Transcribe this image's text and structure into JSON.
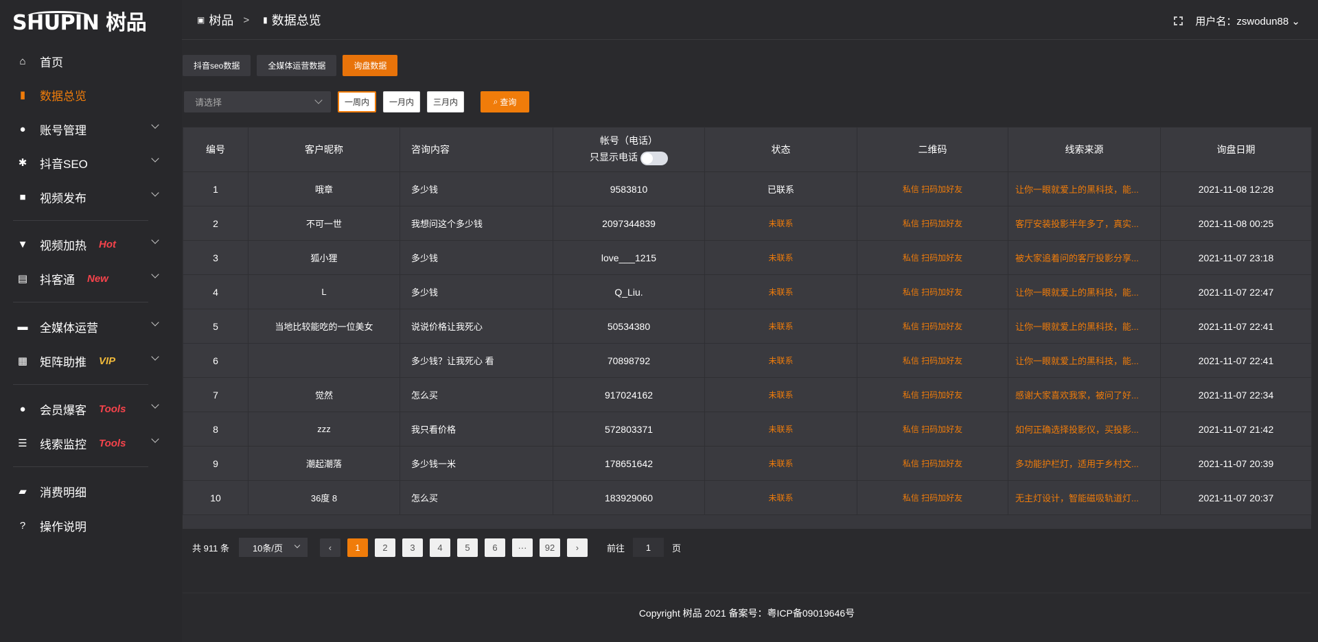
{
  "logo": "SHUPIN 树品",
  "sidebar": {
    "items": [
      {
        "label": "首页",
        "icon": "home-icon",
        "glyph": "⌂"
      },
      {
        "label": "数据总览",
        "icon": "bar-chart-icon",
        "glyph": "▮",
        "active": true
      },
      {
        "label": "账号管理",
        "icon": "user-icon",
        "glyph": "●",
        "chevron": true
      },
      {
        "label": "抖音SEO",
        "icon": "gear-icon",
        "glyph": "✱",
        "chevron": true
      },
      {
        "label": "视频发布",
        "icon": "video-icon",
        "glyph": "■",
        "chevron": true
      },
      {
        "label": "视频加热",
        "icon": "flag-icon",
        "glyph": "▼",
        "chevron": true,
        "badge": "Hot",
        "badge_color": "#f5434b"
      },
      {
        "label": "抖客通",
        "icon": "chat-icon",
        "glyph": "▤",
        "chevron": true,
        "badge": "New",
        "badge_color": "#f5434b"
      },
      {
        "label": "全媒体运营",
        "icon": "monitor-icon",
        "glyph": "▬",
        "chevron": true
      },
      {
        "label": "矩阵助推",
        "icon": "grid-icon",
        "glyph": "▦",
        "chevron": true,
        "badge": "VIP",
        "badge_color": "#f0b93a"
      },
      {
        "label": "会员爆客",
        "icon": "member-icon",
        "glyph": "●",
        "chevron": true,
        "badge": "Tools",
        "badge_color": "#f5434b"
      },
      {
        "label": "线索监控",
        "icon": "sliders-icon",
        "glyph": "☰",
        "chevron": true,
        "badge": "Tools",
        "badge_color": "#f5434b"
      },
      {
        "label": "消费明细",
        "icon": "wallet-icon",
        "glyph": "▰"
      },
      {
        "label": "操作说明",
        "icon": "help-icon",
        "glyph": "?"
      }
    ]
  },
  "header": {
    "breadcrumb": [
      "树品",
      "数据总览"
    ],
    "separator": ">",
    "username": "用户名：zswodun88"
  },
  "tabs": [
    {
      "label": "抖音seo数据"
    },
    {
      "label": "全媒体运营数据"
    },
    {
      "label": "询盘数据",
      "active": true
    }
  ],
  "filters": {
    "select_placeholder": "请选择",
    "periods": [
      "一周内",
      "一月内",
      "三月内"
    ],
    "selected_period": "一周内",
    "query": "查询"
  },
  "table": {
    "columns": [
      "编号",
      "客户昵称",
      "咨询内容",
      "帐号（电话）",
      "状态",
      "二维码",
      "线索来源",
      "询盘日期"
    ],
    "phone_toggle_label": "只显示电话",
    "phone_toggle_on": false,
    "qr_text": "私信 扫码加好友",
    "rows": [
      {
        "id": "1",
        "name": "哦章",
        "content": "多少钱",
        "account": "9583810",
        "status": "已联系",
        "source": "让你一眼就爱上的黑科技，能...",
        "date": "2021-11-08 12:28"
      },
      {
        "id": "2",
        "name": "不可一世",
        "content": "我想问这个多少钱",
        "account": "2097344839",
        "status": "未联系",
        "source": "客厅安装投影半年多了，真实...",
        "date": "2021-11-08 00:25"
      },
      {
        "id": "3",
        "name": "狐小狸",
        "content": "多少钱",
        "account": "love___1215",
        "status": "未联系",
        "source": "被大家追着问的客厅投影分享...",
        "date": "2021-11-07 23:18"
      },
      {
        "id": "4",
        "name": "L",
        "content": "多少钱",
        "account": "Q_Liu.",
        "status": "未联系",
        "source": "让你一眼就爱上的黑科技，能...",
        "date": "2021-11-07 22:47"
      },
      {
        "id": "5",
        "name": "当地比较能吃的一位美女",
        "content": "说说价格让我死心",
        "account": "50534380",
        "status": "未联系",
        "source": "让你一眼就爱上的黑科技，能...",
        "date": "2021-11-07 22:41"
      },
      {
        "id": "6",
        "name": "",
        "content": "多少钱？让我死心 看",
        "account": "70898792",
        "status": "未联系",
        "source": "让你一眼就爱上的黑科技，能...",
        "date": "2021-11-07 22:41"
      },
      {
        "id": "7",
        "name": "觉然",
        "content": "怎么买",
        "account": "917024162",
        "status": "未联系",
        "source": "感谢大家喜欢我家，被问了好...",
        "date": "2021-11-07 22:34"
      },
      {
        "id": "8",
        "name": "zzz",
        "content": "我只看价格",
        "account": "572803371",
        "status": "未联系",
        "source": "如何正确选择投影仪，买投影...",
        "date": "2021-11-07 21:42"
      },
      {
        "id": "9",
        "name": "潮起潮落",
        "content": "多少钱一米",
        "account": "178651642",
        "status": "未联系",
        "source": "多功能护栏灯，适用于乡村文...",
        "date": "2021-11-07 20:39"
      },
      {
        "id": "10",
        "name": "36度 8",
        "content": "怎么买",
        "account": "183929060",
        "status": "未联系",
        "source": "无主灯设计，智能磁吸轨道灯...",
        "date": "2021-11-07 20:37"
      }
    ]
  },
  "pagination": {
    "total": "共 911 条",
    "page_size": "10条/页",
    "pages": [
      "1",
      "2",
      "3",
      "4",
      "5",
      "6",
      "···",
      "92"
    ],
    "current": "1",
    "goto_label": "前往",
    "goto_value": "1",
    "page_suffix": "页"
  },
  "footer": "Copyright 树品 2021 备案号：粤ICP备09019646号",
  "colors": {
    "accent": "#f07c0a",
    "contacted": "#ffffff",
    "not_contacted": "#f07c0a"
  }
}
